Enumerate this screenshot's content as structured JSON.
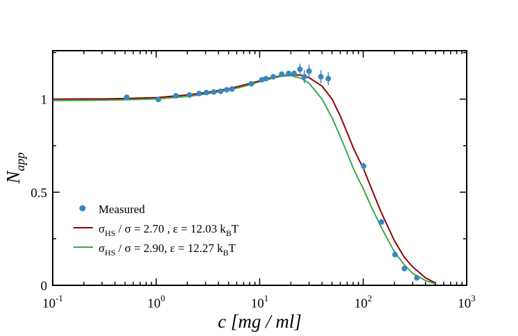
{
  "chart_data": {
    "type": "scatter",
    "title": "",
    "xlabel_main": "c [mg / ml]",
    "ylabel": {
      "base": "N",
      "sub": "app"
    },
    "xscale": "log",
    "xlim": [
      0.1,
      1000
    ],
    "ylim": [
      0,
      1.26
    ],
    "grid": false,
    "legend_placement": "bottom-left",
    "x_ticks": [
      {
        "base": "10",
        "exp": "-1",
        "value": 0.1
      },
      {
        "base": "10",
        "exp": "0",
        "value": 1
      },
      {
        "base": "10",
        "exp": "1",
        "value": 10
      },
      {
        "base": "10",
        "exp": "2",
        "value": 100
      },
      {
        "base": "10",
        "exp": "3",
        "value": 1000
      }
    ],
    "y_ticks": [
      {
        "label": "0",
        "value": 0
      },
      {
        "label": "0.5",
        "value": 0.5
      },
      {
        "label": "1",
        "value": 1
      }
    ],
    "colors": {
      "measured": "#3a86c0",
      "fit1": "#8b0000",
      "fit2": "#3aa64a",
      "axis": "#000000"
    },
    "series": [
      {
        "name": "Measured",
        "kind": "points",
        "legend": {
          "parts": [
            {
              "t": "Measured"
            }
          ]
        },
        "points": [
          {
            "x": 0.52,
            "y": 1.01
          },
          {
            "x": 1.05,
            "y": 0.998
          },
          {
            "x": 1.55,
            "y": 1.018
          },
          {
            "x": 2.1,
            "y": 1.022
          },
          {
            "x": 2.6,
            "y": 1.03
          },
          {
            "x": 3.05,
            "y": 1.035
          },
          {
            "x": 3.6,
            "y": 1.038
          },
          {
            "x": 4.2,
            "y": 1.042
          },
          {
            "x": 4.8,
            "y": 1.05
          },
          {
            "x": 5.4,
            "y": 1.054
          },
          {
            "x": 8.3,
            "y": 1.082
          },
          {
            "x": 10.5,
            "y": 1.104
          },
          {
            "x": 11.5,
            "y": 1.11
          },
          {
            "x": 13.5,
            "y": 1.12
          },
          {
            "x": 16.3,
            "y": 1.134
          },
          {
            "x": 19.0,
            "y": 1.138
          },
          {
            "x": 21.5,
            "y": 1.138
          },
          {
            "x": 24.5,
            "y": 1.16,
            "err": 0.03
          },
          {
            "x": 27.0,
            "y": 1.12,
            "err": 0.035
          },
          {
            "x": 30.0,
            "y": 1.15,
            "err": 0.035
          },
          {
            "x": 39.0,
            "y": 1.12,
            "err": 0.035
          },
          {
            "x": 46.0,
            "y": 1.11,
            "err": 0.035
          },
          {
            "x": 101,
            "y": 0.64,
            "err": 0.02
          },
          {
            "x": 150,
            "y": 0.34
          },
          {
            "x": 203,
            "y": 0.165
          },
          {
            "x": 250,
            "y": 0.09
          },
          {
            "x": 330,
            "y": 0.04
          }
        ]
      },
      {
        "name": "σHS / σ = 2.70 , ε = 12.03 kBT",
        "kind": "line",
        "legend": {
          "parts": [
            {
              "t": "σ"
            },
            {
              "t": "HS",
              "sub": true
            },
            {
              "t": " / σ = 2.70 , ε = 12.03 k"
            },
            {
              "t": "B",
              "sub": true
            },
            {
              "t": "T"
            }
          ]
        },
        "points": [
          {
            "x": 0.1,
            "y": 1.0
          },
          {
            "x": 0.3,
            "y": 1.001
          },
          {
            "x": 0.5,
            "y": 1.003
          },
          {
            "x": 1,
            "y": 1.008
          },
          {
            "x": 2,
            "y": 1.022
          },
          {
            "x": 3,
            "y": 1.035
          },
          {
            "x": 5,
            "y": 1.055
          },
          {
            "x": 7,
            "y": 1.075
          },
          {
            "x": 10,
            "y": 1.098
          },
          {
            "x": 13,
            "y": 1.115
          },
          {
            "x": 16,
            "y": 1.125
          },
          {
            "x": 20,
            "y": 1.13
          },
          {
            "x": 25,
            "y": 1.128
          },
          {
            "x": 30,
            "y": 1.115
          },
          {
            "x": 40,
            "y": 1.07
          },
          {
            "x": 50,
            "y": 1.0
          },
          {
            "x": 60,
            "y": 0.91
          },
          {
            "x": 70,
            "y": 0.82
          },
          {
            "x": 80,
            "y": 0.74
          },
          {
            "x": 90,
            "y": 0.68
          },
          {
            "x": 100,
            "y": 0.63
          },
          {
            "x": 120,
            "y": 0.52
          },
          {
            "x": 150,
            "y": 0.39
          },
          {
            "x": 200,
            "y": 0.24
          },
          {
            "x": 250,
            "y": 0.15
          },
          {
            "x": 300,
            "y": 0.1
          },
          {
            "x": 400,
            "y": 0.04
          },
          {
            "x": 500,
            "y": 0.012
          }
        ]
      },
      {
        "name": "σHS / σ = 2.90, ε = 12.27 kBT",
        "kind": "line",
        "legend": {
          "parts": [
            {
              "t": "σ"
            },
            {
              "t": "HS",
              "sub": true
            },
            {
              "t": " / σ = 2.90,  ε = 12.27 k"
            },
            {
              "t": "B",
              "sub": true
            },
            {
              "t": "T"
            }
          ]
        },
        "points": [
          {
            "x": 0.1,
            "y": 0.992
          },
          {
            "x": 0.3,
            "y": 0.994
          },
          {
            "x": 0.5,
            "y": 0.996
          },
          {
            "x": 1,
            "y": 1.001
          },
          {
            "x": 2,
            "y": 1.014
          },
          {
            "x": 3,
            "y": 1.027
          },
          {
            "x": 5,
            "y": 1.048
          },
          {
            "x": 7,
            "y": 1.068
          },
          {
            "x": 10,
            "y": 1.093
          },
          {
            "x": 13,
            "y": 1.11
          },
          {
            "x": 16,
            "y": 1.122
          },
          {
            "x": 20,
            "y": 1.126
          },
          {
            "x": 25,
            "y": 1.112
          },
          {
            "x": 30,
            "y": 1.085
          },
          {
            "x": 40,
            "y": 1.0
          },
          {
            "x": 50,
            "y": 0.9
          },
          {
            "x": 60,
            "y": 0.8
          },
          {
            "x": 70,
            "y": 0.71
          },
          {
            "x": 80,
            "y": 0.63
          },
          {
            "x": 90,
            "y": 0.57
          },
          {
            "x": 100,
            "y": 0.52
          },
          {
            "x": 120,
            "y": 0.42
          },
          {
            "x": 150,
            "y": 0.31
          },
          {
            "x": 200,
            "y": 0.18
          },
          {
            "x": 250,
            "y": 0.11
          },
          {
            "x": 300,
            "y": 0.065
          },
          {
            "x": 400,
            "y": 0.025
          },
          {
            "x": 500,
            "y": 0.008
          }
        ]
      }
    ]
  }
}
